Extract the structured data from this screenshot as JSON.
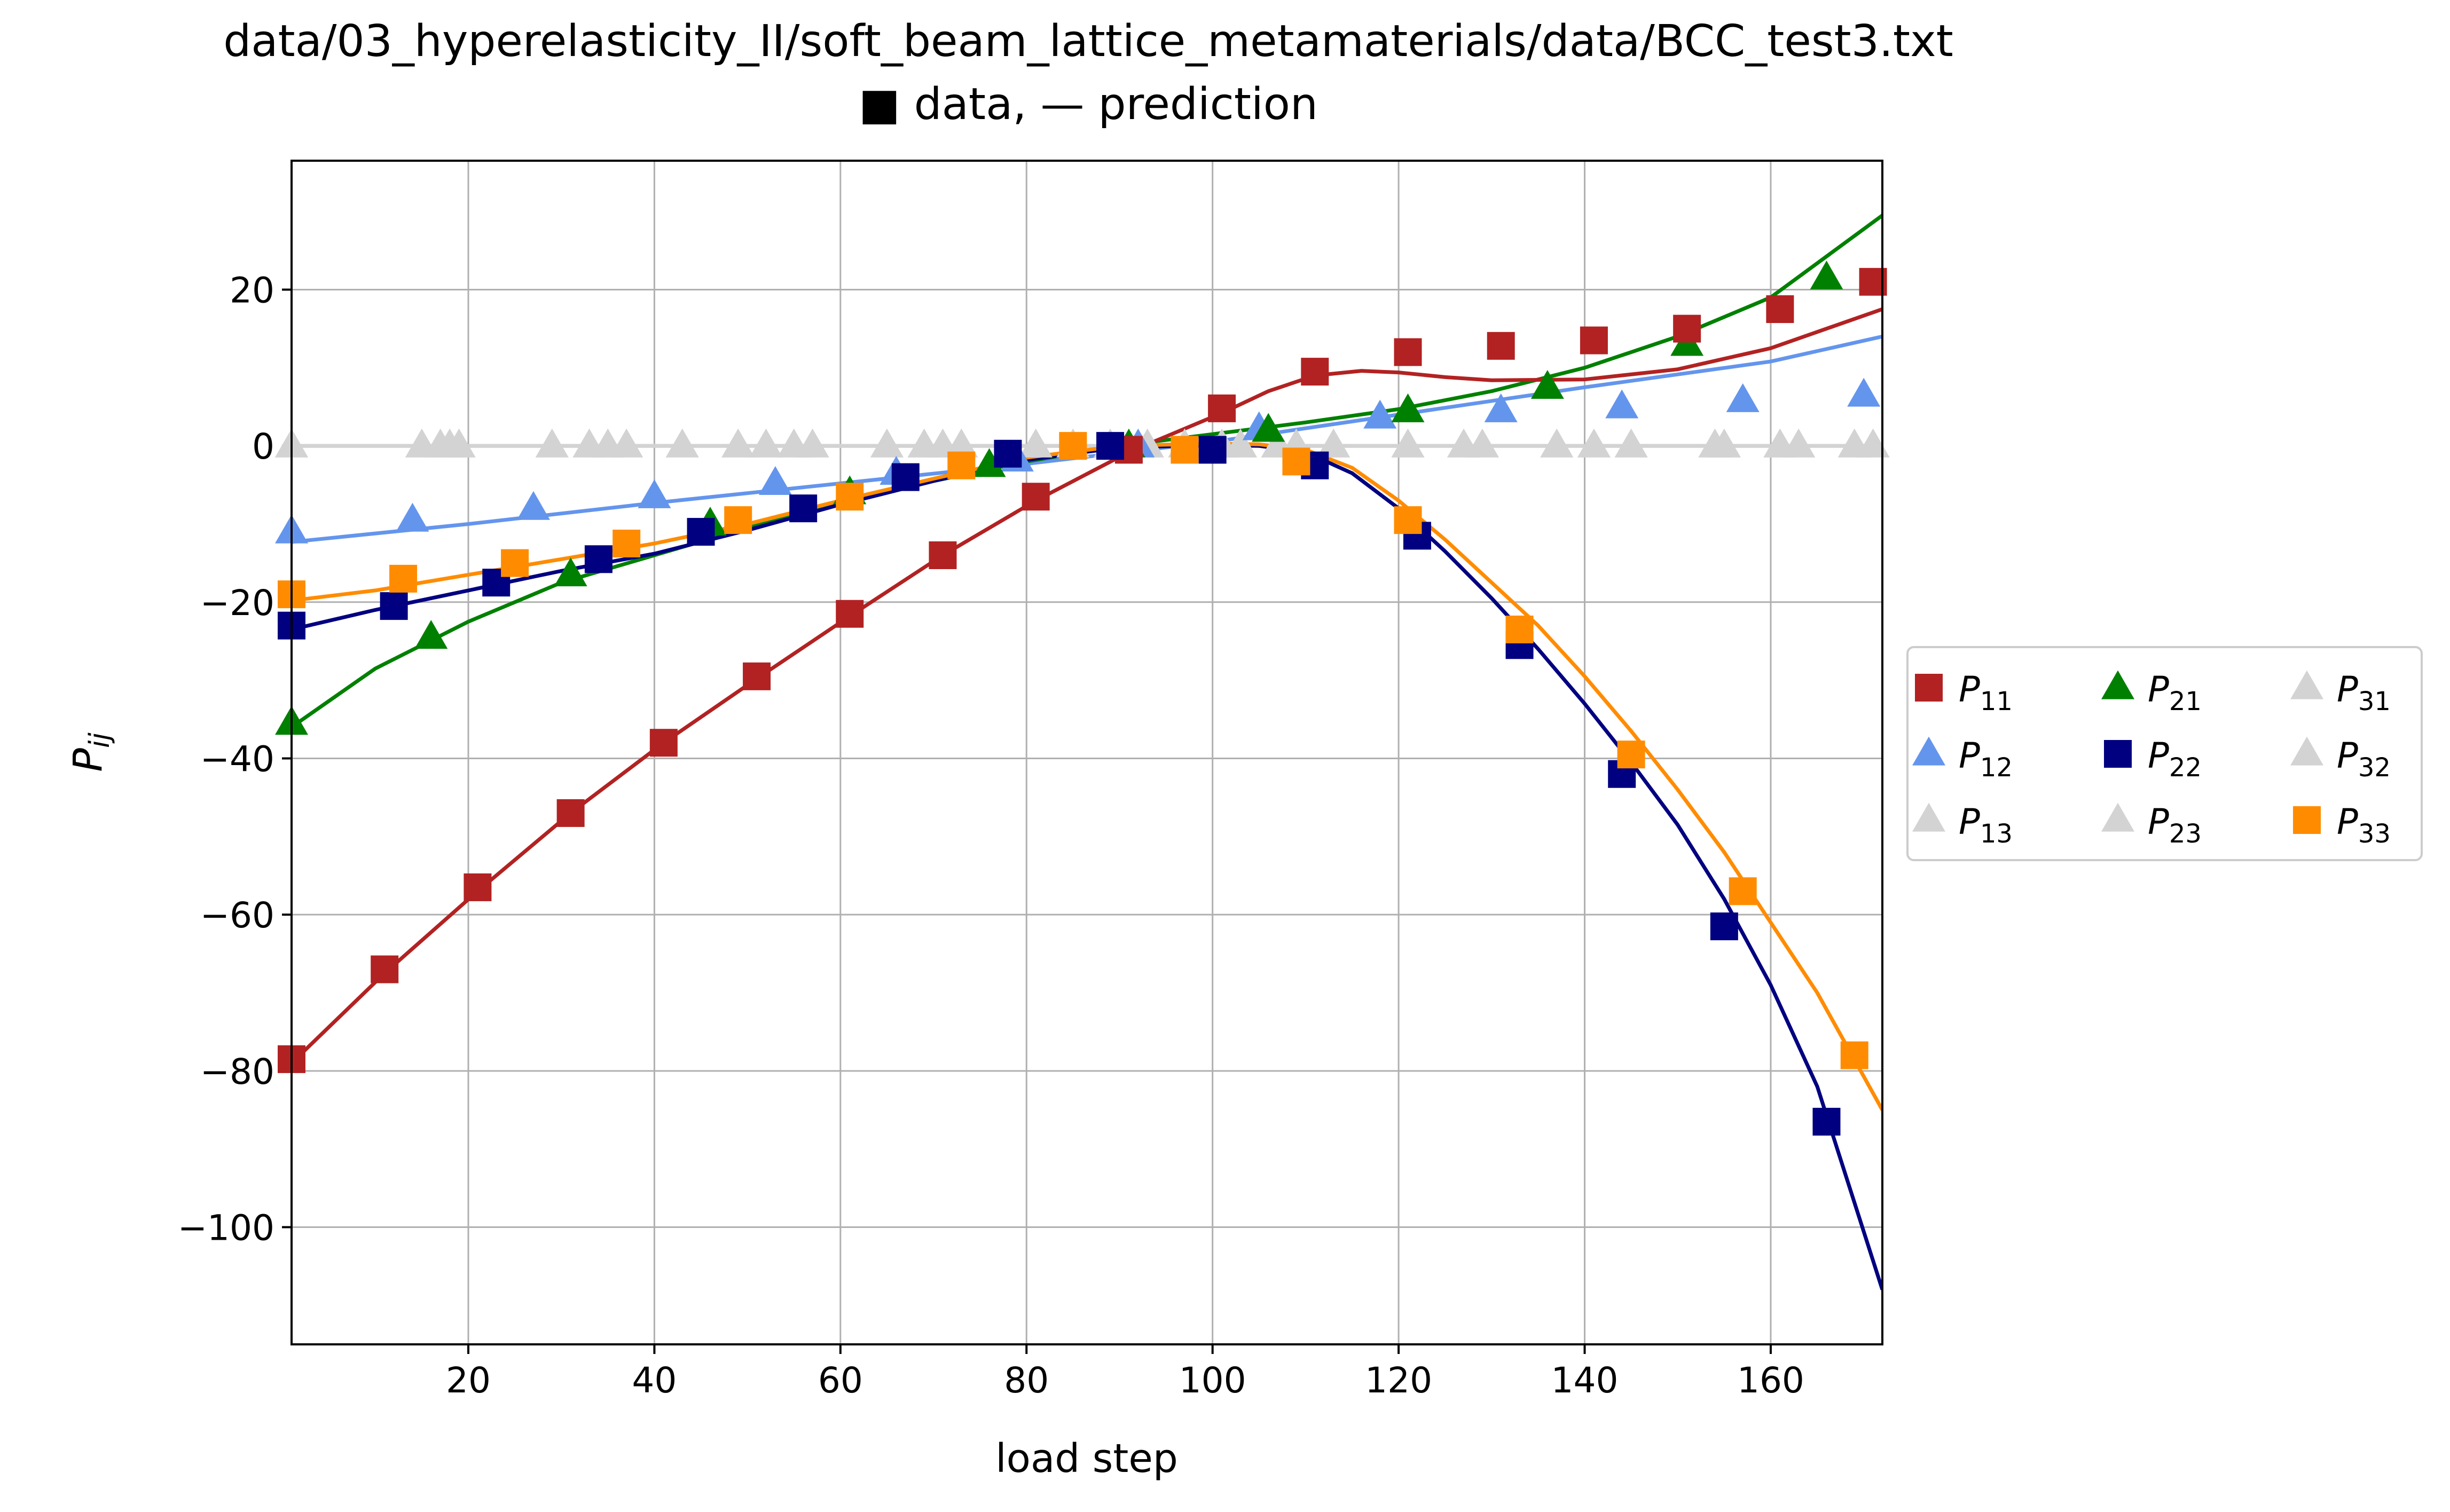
{
  "chart_data": {
    "type": "line",
    "title": "data/03_hyperelasticity_II/soft_beam_lattice_metamaterials/data/BCC_test3.txt",
    "subtitle": "■ data, — prediction",
    "xlabel": "load step",
    "ylabel": "P",
    "ylabel_sub": "ij",
    "xlim": [
      1,
      172
    ],
    "ylim": [
      -115,
      36.5
    ],
    "xticks": [
      20,
      40,
      60,
      80,
      100,
      120,
      140,
      160
    ],
    "yticks": [
      20,
      0,
      -20,
      -40,
      -60,
      -80,
      -100
    ],
    "xtick_labels": [
      "20",
      "40",
      "60",
      "80",
      "100",
      "120",
      "140",
      "160"
    ],
    "ytick_labels": [
      "20",
      "0",
      "−20",
      "−40",
      "−60",
      "−80",
      "−100"
    ],
    "grid": true,
    "legend": {
      "placement": "right-outside",
      "columns": 3
    },
    "series": [
      {
        "name": "P",
        "sub": "11",
        "color": "#b22222",
        "marker": "square",
        "points": [
          [
            1,
            -78.5
          ],
          [
            11,
            -67
          ],
          [
            21,
            -56.5
          ],
          [
            31,
            -47
          ],
          [
            41,
            -38
          ],
          [
            51,
            -29.5
          ],
          [
            61,
            -21.5
          ],
          [
            71,
            -14
          ],
          [
            81,
            -6.5
          ],
          [
            91,
            -0.5
          ],
          [
            101,
            4.8
          ],
          [
            111,
            9.5
          ],
          [
            121,
            12
          ],
          [
            131,
            12.8
          ],
          [
            141,
            13.5
          ],
          [
            151,
            15
          ],
          [
            161,
            17.5
          ],
          [
            171,
            21
          ]
        ],
        "curve": [
          [
            1,
            -79
          ],
          [
            11,
            -67.5
          ],
          [
            21,
            -57
          ],
          [
            31,
            -47
          ],
          [
            41,
            -38
          ],
          [
            51,
            -29.8
          ],
          [
            61,
            -21.8
          ],
          [
            71,
            -14
          ],
          [
            81,
            -7
          ],
          [
            91,
            -0.8
          ],
          [
            101,
            4.2
          ],
          [
            106,
            7
          ],
          [
            111,
            9
          ],
          [
            116,
            9.6
          ],
          [
            120,
            9.4
          ],
          [
            125,
            8.8
          ],
          [
            130,
            8.4
          ],
          [
            140,
            8.5
          ],
          [
            150,
            9.8
          ],
          [
            160,
            12.5
          ],
          [
            172,
            17.5
          ]
        ]
      },
      {
        "name": "P",
        "sub": "21",
        "color": "#008000",
        "marker": "triangle",
        "points": [
          [
            1,
            -35.5
          ],
          [
            16,
            -24.5
          ],
          [
            31,
            -16.5
          ],
          [
            46,
            -10
          ],
          [
            61,
            -6
          ],
          [
            76,
            -2.5
          ],
          [
            91,
            0
          ],
          [
            106,
            2
          ],
          [
            121,
            4.5
          ],
          [
            136,
            7.5
          ],
          [
            151,
            13
          ],
          [
            166,
            21.5
          ]
        ],
        "curve": [
          [
            1,
            -36
          ],
          [
            10,
            -28.5
          ],
          [
            20,
            -22.5
          ],
          [
            30,
            -17.5
          ],
          [
            40,
            -14
          ],
          [
            50,
            -10.5
          ],
          [
            60,
            -7.5
          ],
          [
            70,
            -4.5
          ],
          [
            80,
            -2
          ],
          [
            90,
            0
          ],
          [
            100,
            1.5
          ],
          [
            110,
            3
          ],
          [
            120,
            4.7
          ],
          [
            130,
            7
          ],
          [
            140,
            10
          ],
          [
            150,
            14
          ],
          [
            160,
            19
          ],
          [
            172,
            29.5
          ]
        ]
      },
      {
        "name": "P",
        "sub": "31",
        "color": "#d3d3d3",
        "marker": "triangle",
        "points": [
          [
            1,
            0
          ],
          [
            15,
            0
          ],
          [
            18,
            0
          ],
          [
            19,
            0
          ],
          [
            29,
            0
          ],
          [
            33,
            0
          ],
          [
            35,
            0
          ],
          [
            37,
            0
          ],
          [
            43,
            0
          ],
          [
            49,
            0
          ],
          [
            52,
            0
          ],
          [
            55,
            0
          ],
          [
            57,
            0
          ],
          [
            65,
            0
          ],
          [
            69,
            0
          ],
          [
            71,
            0
          ],
          [
            73,
            0
          ],
          [
            81,
            0
          ],
          [
            85,
            0
          ],
          [
            89,
            0
          ],
          [
            93,
            0
          ],
          [
            97,
            0
          ],
          [
            101,
            0
          ],
          [
            103,
            0
          ],
          [
            107,
            0
          ],
          [
            109,
            0
          ],
          [
            113,
            0
          ],
          [
            121,
            0
          ],
          [
            127,
            0
          ],
          [
            129,
            0
          ],
          [
            137,
            0
          ],
          [
            141,
            0
          ],
          [
            145,
            0
          ],
          [
            154,
            0
          ],
          [
            155,
            0
          ],
          [
            161,
            0
          ],
          [
            163,
            0
          ],
          [
            169,
            0
          ],
          [
            171,
            0
          ]
        ],
        "curve": [
          [
            1,
            0
          ],
          [
            172,
            0
          ]
        ]
      },
      {
        "name": "P",
        "sub": "12",
        "color": "#6495ed",
        "marker": "triangle",
        "points": [
          [
            1,
            -11
          ],
          [
            14,
            -9.5
          ],
          [
            27,
            -8
          ],
          [
            40,
            -6.5
          ],
          [
            53,
            -4.8
          ],
          [
            66,
            -3.5
          ],
          [
            79,
            -1.8
          ],
          [
            92,
            0
          ],
          [
            105,
            2.2
          ],
          [
            118,
            3.7
          ],
          [
            131,
            4.5
          ],
          [
            144,
            5
          ],
          [
            157,
            5.8
          ],
          [
            170,
            6.5
          ]
        ],
        "curve": [
          [
            1,
            -12.3
          ],
          [
            20,
            -10
          ],
          [
            40,
            -7.3
          ],
          [
            60,
            -4.8
          ],
          [
            80,
            -2.3
          ],
          [
            100,
            0.5
          ],
          [
            120,
            4
          ],
          [
            140,
            7.5
          ],
          [
            160,
            10.8
          ],
          [
            172,
            14
          ]
        ]
      },
      {
        "name": "P",
        "sub": "22",
        "color": "#000080",
        "marker": "square",
        "points": [
          [
            1,
            -23
          ],
          [
            12,
            -20.5
          ],
          [
            23,
            -17.5
          ],
          [
            34,
            -14.5
          ],
          [
            45,
            -11
          ],
          [
            56,
            -8
          ],
          [
            67,
            -4
          ],
          [
            78,
            -1
          ],
          [
            89,
            0
          ],
          [
            100,
            -0.5
          ],
          [
            111,
            -2.5
          ],
          [
            122,
            -11.5
          ],
          [
            133,
            -25.5
          ],
          [
            144,
            -42
          ],
          [
            155,
            -61.5
          ],
          [
            166,
            -86.5
          ]
        ],
        "curve": [
          [
            1,
            -23.5
          ],
          [
            10,
            -21
          ],
          [
            20,
            -18.5
          ],
          [
            30,
            -16
          ],
          [
            40,
            -13.8
          ],
          [
            50,
            -10.8
          ],
          [
            60,
            -7.5
          ],
          [
            70,
            -4.5
          ],
          [
            80,
            -1.8
          ],
          [
            90,
            -0.2
          ],
          [
            100,
            0.1
          ],
          [
            105,
            0
          ],
          [
            110,
            -0.8
          ],
          [
            115,
            -3.5
          ],
          [
            120,
            -8
          ],
          [
            125,
            -13.5
          ],
          [
            130,
            -19.5
          ],
          [
            135,
            -26
          ],
          [
            140,
            -33
          ],
          [
            145,
            -40.5
          ],
          [
            150,
            -48.5
          ],
          [
            155,
            -58
          ],
          [
            160,
            -69
          ],
          [
            165,
            -82
          ],
          [
            172,
            -108
          ]
        ]
      },
      {
        "name": "P",
        "sub": "32",
        "color": "#d3d3d3",
        "marker": "triangle",
        "points": [
          [
            1,
            0
          ],
          [
            15,
            0
          ],
          [
            18,
            0
          ],
          [
            29,
            0
          ],
          [
            35,
            0
          ],
          [
            43,
            0
          ],
          [
            52,
            0
          ],
          [
            57,
            0
          ],
          [
            65,
            0
          ],
          [
            73,
            0
          ],
          [
            81,
            0
          ],
          [
            89,
            0
          ],
          [
            97,
            0
          ],
          [
            103,
            0
          ],
          [
            109,
            0
          ],
          [
            121,
            0
          ],
          [
            129,
            0
          ],
          [
            137,
            0
          ],
          [
            145,
            0
          ],
          [
            155,
            0
          ],
          [
            163,
            0
          ],
          [
            171,
            0
          ]
        ],
        "curve": [
          [
            1,
            0
          ],
          [
            172,
            0
          ]
        ]
      },
      {
        "name": "P",
        "sub": "13",
        "color": "#d3d3d3",
        "marker": "triangle",
        "points": [
          [
            17,
            0
          ],
          [
            33,
            0
          ],
          [
            49,
            0
          ],
          [
            69,
            0
          ],
          [
            85,
            0
          ],
          [
            101,
            0
          ],
          [
            127,
            0
          ],
          [
            141,
            0
          ],
          [
            161,
            0
          ],
          [
            169,
            0
          ]
        ],
        "curve": [
          [
            1,
            0
          ],
          [
            172,
            0
          ]
        ]
      },
      {
        "name": "P",
        "sub": "23",
        "color": "#d3d3d3",
        "marker": "triangle",
        "points": [
          [
            19,
            0
          ],
          [
            37,
            0
          ],
          [
            55,
            0
          ],
          [
            71,
            0
          ],
          [
            93,
            0
          ],
          [
            107,
            0
          ],
          [
            113,
            0
          ],
          [
            154,
            0
          ]
        ],
        "curve": [
          [
            1,
            0
          ],
          [
            172,
            0
          ]
        ]
      },
      {
        "name": "P",
        "sub": "33",
        "color": "#ff8c00",
        "marker": "square",
        "points": [
          [
            1,
            -19
          ],
          [
            13,
            -17
          ],
          [
            25,
            -15
          ],
          [
            37,
            -12.5
          ],
          [
            49,
            -9.5
          ],
          [
            61,
            -6.5
          ],
          [
            73,
            -2.5
          ],
          [
            85,
            0
          ],
          [
            97,
            -0.5
          ],
          [
            109,
            -2
          ],
          [
            121,
            -9.5
          ],
          [
            133,
            -23.5
          ],
          [
            145,
            -39.5
          ],
          [
            157,
            -57
          ],
          [
            169,
            -78
          ]
        ],
        "curve": [
          [
            1,
            -19.8
          ],
          [
            10,
            -18.5
          ],
          [
            20,
            -16.5
          ],
          [
            30,
            -14.5
          ],
          [
            40,
            -12.5
          ],
          [
            50,
            -10
          ],
          [
            60,
            -7
          ],
          [
            70,
            -4.2
          ],
          [
            80,
            -1.5
          ],
          [
            90,
            0
          ],
          [
            100,
            0.3
          ],
          [
            105,
            0.2
          ],
          [
            110,
            -0.5
          ],
          [
            115,
            -2.8
          ],
          [
            120,
            -7
          ],
          [
            125,
            -12
          ],
          [
            130,
            -17.5
          ],
          [
            135,
            -23
          ],
          [
            140,
            -29.5
          ],
          [
            145,
            -36.5
          ],
          [
            150,
            -44
          ],
          [
            155,
            -52
          ],
          [
            160,
            -61
          ],
          [
            165,
            -70
          ],
          [
            172,
            -85
          ]
        ]
      }
    ],
    "legend_order": [
      0,
      3,
      6,
      1,
      4,
      7,
      2,
      5,
      8
    ]
  }
}
